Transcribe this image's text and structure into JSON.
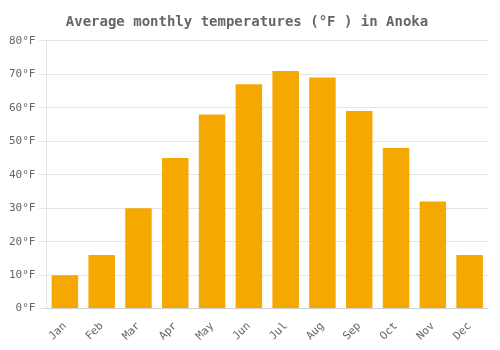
{
  "chart_data": {
    "type": "bar",
    "title": "Average monthly temperatures (°F ) in Anoka",
    "categories": [
      "Jan",
      "Feb",
      "Mar",
      "Apr",
      "May",
      "Jun",
      "Jul",
      "Aug",
      "Sep",
      "Oct",
      "Nov",
      "Dec"
    ],
    "values": [
      10,
      16,
      30,
      45,
      58,
      67,
      71,
      69,
      59,
      48,
      32,
      16
    ],
    "color": "#F5A800",
    "ylim": [
      0,
      80
    ],
    "yticks": [
      {
        "value": 0,
        "label": "0°F"
      },
      {
        "value": 10,
        "label": "10°F"
      },
      {
        "value": 20,
        "label": "20°F"
      },
      {
        "value": 30,
        "label": "30°F"
      },
      {
        "value": 40,
        "label": "40°F"
      },
      {
        "value": 50,
        "label": "50°F"
      },
      {
        "value": 60,
        "label": "60°F"
      },
      {
        "value": 70,
        "label": "70°F"
      },
      {
        "value": 80,
        "label": "80°F"
      }
    ],
    "grid": true
  }
}
